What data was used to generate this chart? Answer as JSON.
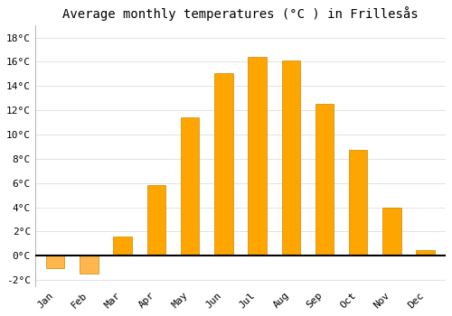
{
  "title": "Average monthly temperatures (°C ) in Frillesås",
  "months": [
    "Jan",
    "Feb",
    "Mar",
    "Apr",
    "May",
    "Jun",
    "Jul",
    "Aug",
    "Sep",
    "Oct",
    "Nov",
    "Dec"
  ],
  "values": [
    -1.0,
    -1.5,
    1.6,
    5.8,
    11.4,
    15.1,
    16.4,
    16.1,
    12.5,
    8.7,
    4.0,
    0.5
  ],
  "bar_color_pos": "#FFA500",
  "bar_color_neg": "#FFB74D",
  "bar_edge_color": "#CC8800",
  "ylim": [
    -2.5,
    19
  ],
  "yticks": [
    -2,
    0,
    2,
    4,
    6,
    8,
    10,
    12,
    14,
    16,
    18
  ],
  "background_color": "#FFFFFF",
  "grid_color": "#DDDDDD",
  "title_fontsize": 10,
  "tick_fontsize": 8,
  "font_family": "monospace",
  "bar_width": 0.55
}
